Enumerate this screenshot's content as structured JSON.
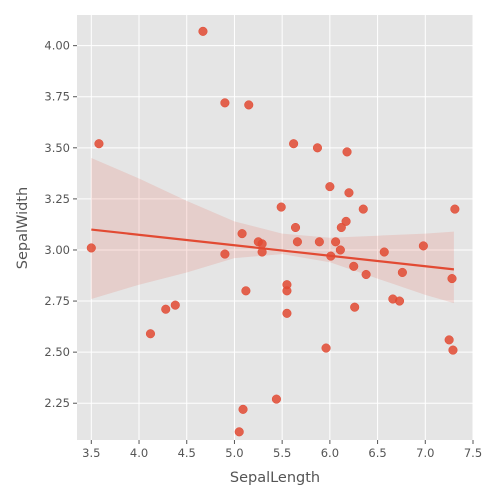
{
  "chart_data": {
    "type": "scatter",
    "title": "",
    "xlabel": "SepalLength",
    "ylabel": "SepalWidth",
    "xlim": [
      3.35,
      7.5
    ],
    "ylim": [
      2.07,
      4.15
    ],
    "x_ticks": [
      3.5,
      4.0,
      4.5,
      5.0,
      5.5,
      6.0,
      6.5,
      7.0,
      7.5
    ],
    "x_tick_labels": [
      "3.5",
      "4.0",
      "4.5",
      "5.0",
      "5.5",
      "6.0",
      "6.5",
      "7.0",
      "7.5"
    ],
    "y_ticks": [
      2.25,
      2.5,
      2.75,
      3.0,
      3.25,
      3.5,
      3.75,
      4.0
    ],
    "y_tick_labels": [
      "2.25",
      "2.50",
      "2.75",
      "3.00",
      "3.25",
      "3.50",
      "3.75",
      "4.00"
    ],
    "grid": true,
    "colors": {
      "points": "#E24A33",
      "background": "#E5E5E5",
      "grid": "#FFFFFF",
      "band": "#E24A33"
    },
    "regression": {
      "x": [
        3.5,
        7.3
      ],
      "y": [
        3.1,
        2.905
      ],
      "ci_x": [
        3.5,
        4.0,
        4.5,
        5.0,
        5.5,
        6.0,
        6.5,
        7.0,
        7.3
      ],
      "ci_upper": [
        3.45,
        3.35,
        3.24,
        3.14,
        3.08,
        3.06,
        3.07,
        3.08,
        3.09
      ],
      "ci_lower": [
        2.76,
        2.83,
        2.89,
        2.96,
        2.98,
        2.94,
        2.86,
        2.78,
        2.74
      ]
    },
    "points": [
      {
        "x": 3.5,
        "y": 3.01
      },
      {
        "x": 3.58,
        "y": 3.52
      },
      {
        "x": 4.12,
        "y": 2.59
      },
      {
        "x": 4.28,
        "y": 2.71
      },
      {
        "x": 4.38,
        "y": 2.73
      },
      {
        "x": 4.67,
        "y": 4.07
      },
      {
        "x": 4.9,
        "y": 3.72
      },
      {
        "x": 4.9,
        "y": 2.98
      },
      {
        "x": 5.05,
        "y": 2.11
      },
      {
        "x": 5.08,
        "y": 3.08
      },
      {
        "x": 5.09,
        "y": 2.22
      },
      {
        "x": 5.12,
        "y": 2.8
      },
      {
        "x": 5.15,
        "y": 3.71
      },
      {
        "x": 5.25,
        "y": 3.04
      },
      {
        "x": 5.29,
        "y": 3.03
      },
      {
        "x": 5.29,
        "y": 2.99
      },
      {
        "x": 5.44,
        "y": 2.27
      },
      {
        "x": 5.49,
        "y": 3.21
      },
      {
        "x": 5.55,
        "y": 2.83
      },
      {
        "x": 5.55,
        "y": 2.8
      },
      {
        "x": 5.55,
        "y": 2.69
      },
      {
        "x": 5.62,
        "y": 3.52
      },
      {
        "x": 5.64,
        "y": 3.11
      },
      {
        "x": 5.66,
        "y": 3.04
      },
      {
        "x": 5.87,
        "y": 3.5
      },
      {
        "x": 5.89,
        "y": 3.04
      },
      {
        "x": 5.96,
        "y": 2.52
      },
      {
        "x": 6.0,
        "y": 3.31
      },
      {
        "x": 6.01,
        "y": 2.97
      },
      {
        "x": 6.06,
        "y": 3.04
      },
      {
        "x": 6.11,
        "y": 3.0
      },
      {
        "x": 6.12,
        "y": 3.11
      },
      {
        "x": 6.17,
        "y": 3.14
      },
      {
        "x": 6.18,
        "y": 3.48
      },
      {
        "x": 6.2,
        "y": 3.28
      },
      {
        "x": 6.25,
        "y": 2.92
      },
      {
        "x": 6.26,
        "y": 2.72
      },
      {
        "x": 6.35,
        "y": 3.2
      },
      {
        "x": 6.38,
        "y": 2.88
      },
      {
        "x": 6.57,
        "y": 2.99
      },
      {
        "x": 6.66,
        "y": 2.76
      },
      {
        "x": 6.73,
        "y": 2.75
      },
      {
        "x": 6.76,
        "y": 2.89
      },
      {
        "x": 6.98,
        "y": 3.02
      },
      {
        "x": 7.25,
        "y": 2.56
      },
      {
        "x": 7.28,
        "y": 2.86
      },
      {
        "x": 7.29,
        "y": 2.51
      },
      {
        "x": 7.31,
        "y": 3.2
      }
    ]
  }
}
